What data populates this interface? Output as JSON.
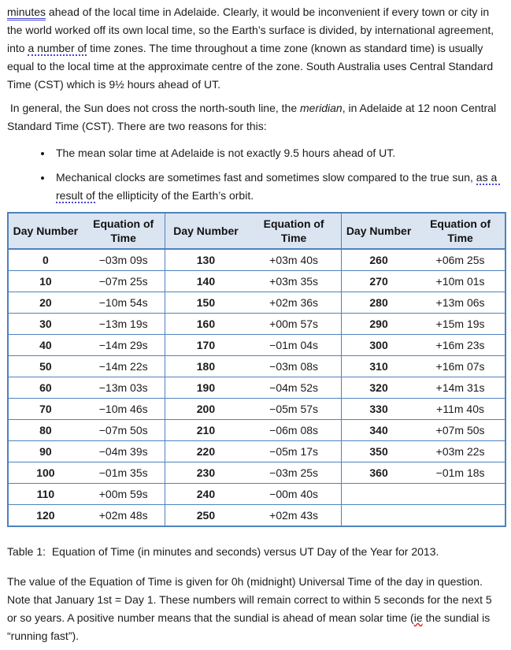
{
  "page": {
    "colors": {
      "table_border": "#4f81bd",
      "header_bg": "#dbe5f1",
      "grammar_blue": "#4646d8",
      "spelling_red": "#e02020"
    },
    "paragraph1": {
      "segments": [
        {
          "text": "minutes",
          "style": "grammar-double"
        },
        {
          "text": " ahead of the local time in Adelaide. Clearly, it would be inconvenient if every town or city in the world worked off its own local time, so the Earth’s surface is divided, by international agreement, into ",
          "style": ""
        },
        {
          "text": "a number of",
          "style": "grammar-dotted"
        },
        {
          "text": " time zones. The time throughout a time zone (known as standard time) is usually equal to the local time at the approximate centre of the zone. South Australia uses Central Standard Time (CST) which is 9½ hours ahead of UT.",
          "style": ""
        }
      ]
    },
    "paragraph2": {
      "segments": [
        {
          "text": " In general, the Sun does not cross the north-south line, the ",
          "style": ""
        },
        {
          "text": "meridian",
          "style": "italic"
        },
        {
          "text": ", in Adelaide at 12 noon Central Standard Time (CST). There are two reasons for this:",
          "style": ""
        }
      ]
    },
    "bullets": [
      {
        "segments": [
          {
            "text": "The mean solar time at Adelaide is not exactly 9.5 hours ahead of UT.",
            "style": ""
          }
        ]
      },
      {
        "segments": [
          {
            "text": "Mechanical clocks are sometimes fast and sometimes slow compared to the true sun, ",
            "style": ""
          },
          {
            "text": "as a result of",
            "style": "grammar-dotted"
          },
          {
            "text": " the ellipticity of the Earth’s orbit.",
            "style": ""
          }
        ]
      }
    ],
    "table": {
      "headers": [
        "Day Number",
        "Equation of Time",
        "Day Number",
        "Equation of Time",
        "Day Number",
        "Equation of Time"
      ],
      "rows": [
        [
          "0",
          "−03m 09s",
          "130",
          "+03m 40s",
          "260",
          "+06m 25s"
        ],
        [
          "10",
          "−07m 25s",
          "140",
          "+03m 35s",
          "270",
          "+10m 01s"
        ],
        [
          "20",
          "−10m 54s",
          "150",
          "+02m 36s",
          "280",
          "+13m 06s"
        ],
        [
          "30",
          "−13m 19s",
          "160",
          "+00m 57s",
          "290",
          "+15m 19s"
        ],
        [
          "40",
          "−14m 29s",
          "170",
          "−01m 04s",
          "300",
          "+16m 23s"
        ],
        [
          "50",
          "−14m 22s",
          "180",
          "−03m 08s",
          "310",
          "+16m 07s"
        ],
        [
          "60",
          "−13m 03s",
          "190",
          "−04m 52s",
          "320",
          "+14m 31s"
        ],
        [
          "70",
          "−10m 46s",
          "200",
          "−05m 57s",
          "330",
          "+11m 40s"
        ],
        [
          "80",
          "−07m 50s",
          "210",
          "−06m 08s",
          "340",
          "+07m 50s"
        ],
        [
          "90",
          "−04m 39s",
          "220",
          "−05m 17s",
          "350",
          "+03m 22s"
        ],
        [
          "100",
          "−01m 35s",
          "230",
          "−03m 25s",
          "360",
          "−01m 18s"
        ],
        [
          "110",
          "+00m 59s",
          "240",
          "−00m 40s",
          "",
          ""
        ],
        [
          "120",
          "+02m 48s",
          "250",
          "+02m 43s",
          "",
          ""
        ]
      ]
    },
    "caption": "Table 1:  Equation of Time (in minutes and seconds) versus UT Day of the Year for 2013.",
    "paragraph3": {
      "segments": [
        {
          "text": "The value of the Equation of Time is given for 0h (midnight) Universal Time of the day in question. Note that January 1st = Day 1. These numbers will remain correct to within 5 seconds for the next 5 or so years. A positive number means that the sundial is ahead of mean solar time (",
          "style": ""
        },
        {
          "text": "ie",
          "style": "spelling"
        },
        {
          "text": " the sundial is “running fast”).",
          "style": ""
        }
      ]
    }
  }
}
